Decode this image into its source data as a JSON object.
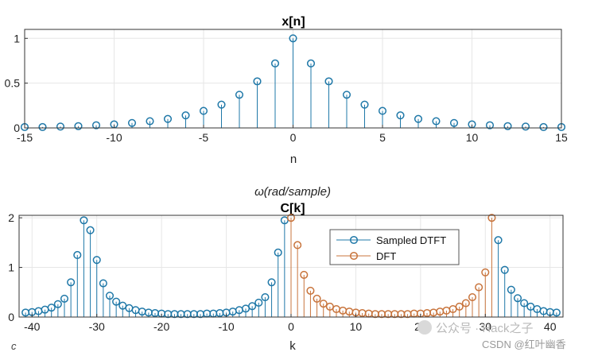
{
  "chart_data": [
    {
      "type": "stem",
      "title": "x[n]",
      "xlabel": "n",
      "ylabel": "",
      "xlim": [
        -15,
        15
      ],
      "ylim": [
        0,
        1.1
      ],
      "xticks": [
        "-15",
        "-10",
        "-5",
        "0",
        "5",
        "10",
        "15"
      ],
      "yticks": [
        "0",
        "0.5",
        "1"
      ],
      "grid": true,
      "series": [
        {
          "name": "x[n]",
          "color": "#1f78a8",
          "x": [
            -15,
            -14,
            -13,
            -12,
            -11,
            -10,
            -9,
            -8,
            -7,
            -6,
            -5,
            -4,
            -3,
            -2,
            -1,
            0,
            1,
            2,
            3,
            4,
            5,
            6,
            7,
            8,
            9,
            10,
            11,
            12,
            13,
            14,
            15
          ],
          "values": [
            0.01,
            0.01,
            0.015,
            0.02,
            0.03,
            0.04,
            0.055,
            0.075,
            0.1,
            0.14,
            0.19,
            0.26,
            0.37,
            0.52,
            0.72,
            1.0,
            0.72,
            0.52,
            0.37,
            0.26,
            0.19,
            0.14,
            0.1,
            0.075,
            0.055,
            0.04,
            0.03,
            0.02,
            0.015,
            0.01,
            0.01
          ]
        }
      ]
    },
    {
      "type": "stem",
      "title": "C[k]",
      "pre_title": "ω(rad/sample)",
      "xlabel": "k",
      "ylabel": "",
      "xlim": [
        -42,
        42
      ],
      "ylim": [
        0,
        2.05
      ],
      "xticks": [
        "-40",
        "-30",
        "-20",
        "-10",
        "0",
        "10",
        "20",
        "30",
        "40"
      ],
      "yticks": [
        "0",
        "1",
        "2"
      ],
      "grid": true,
      "legend": {
        "position": "top-right",
        "entries": [
          "Sampled DTFT",
          "DFT"
        ]
      },
      "series": [
        {
          "name": "Sampled DTFT",
          "color": "#1f78a8",
          "x": [
            -41,
            -40,
            -39,
            -38,
            -37,
            -36,
            -35,
            -34,
            -33,
            -32,
            -31,
            -30,
            -29,
            -28,
            -27,
            -26,
            -25,
            -24,
            -23,
            -22,
            -21,
            -20,
            -19,
            -18,
            -17,
            -16,
            -15,
            -14,
            -13,
            -12,
            -11,
            -10,
            -9,
            -8,
            -7,
            -6,
            -5,
            -4,
            -3,
            -2,
            -1,
            32,
            33,
            34,
            35,
            36,
            37,
            38,
            39,
            40,
            41
          ],
          "values": [
            0.09,
            0.1,
            0.12,
            0.15,
            0.19,
            0.26,
            0.37,
            0.7,
            1.25,
            1.95,
            1.75,
            1.15,
            0.68,
            0.43,
            0.31,
            0.23,
            0.18,
            0.14,
            0.11,
            0.09,
            0.08,
            0.07,
            0.06,
            0.06,
            0.06,
            0.06,
            0.06,
            0.06,
            0.07,
            0.07,
            0.08,
            0.09,
            0.11,
            0.14,
            0.17,
            0.22,
            0.29,
            0.4,
            0.7,
            1.3,
            1.95,
            1.55,
            0.95,
            0.55,
            0.38,
            0.28,
            0.21,
            0.16,
            0.12,
            0.1,
            0.09
          ]
        },
        {
          "name": "DFT",
          "color": "#c8743c",
          "x": [
            0,
            1,
            2,
            3,
            4,
            5,
            6,
            7,
            8,
            9,
            10,
            11,
            12,
            13,
            14,
            15,
            16,
            17,
            18,
            19,
            20,
            21,
            22,
            23,
            24,
            25,
            26,
            27,
            28,
            29,
            30,
            31
          ],
          "values": [
            2.0,
            1.45,
            0.85,
            0.53,
            0.37,
            0.27,
            0.21,
            0.16,
            0.13,
            0.11,
            0.09,
            0.08,
            0.07,
            0.06,
            0.06,
            0.06,
            0.06,
            0.06,
            0.06,
            0.07,
            0.07,
            0.08,
            0.09,
            0.11,
            0.13,
            0.16,
            0.21,
            0.28,
            0.4,
            0.6,
            0.9,
            2.0
          ]
        }
      ]
    }
  ],
  "watermark": {
    "line1": "公众号 · Hack之子",
    "line2": "CSDN @红叶幽香"
  },
  "edge_glyph": "c"
}
